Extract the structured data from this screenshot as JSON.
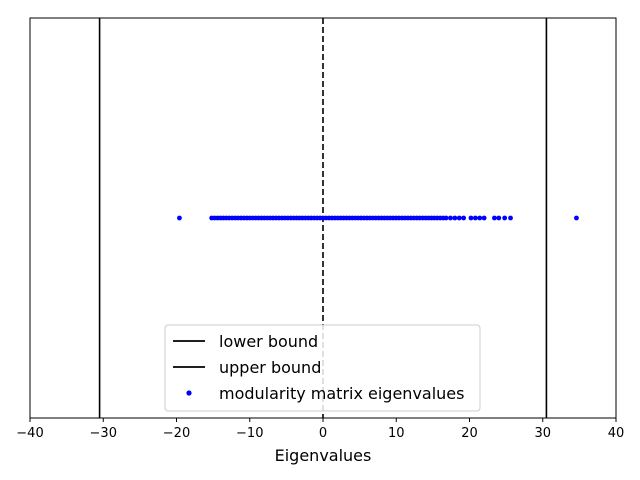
{
  "chart_data": {
    "type": "scatter",
    "title": "",
    "xlabel": "Eigenvalues",
    "ylabel": "",
    "xlim": [
      -40,
      40
    ],
    "ylim": [
      -1,
      1
    ],
    "xticks": [
      -40,
      -30,
      -20,
      -10,
      0,
      10,
      20,
      30,
      40
    ],
    "xtick_labels": [
      "−40",
      "−30",
      "−20",
      "−10",
      "0",
      "10",
      "20",
      "30",
      "40"
    ],
    "yticks_visible": false,
    "grid": false,
    "legend_position": "lower-center",
    "vertical_lines": [
      {
        "x": -30.5,
        "style": "solid",
        "color": "#000000",
        "legend": "lower bound"
      },
      {
        "x": 30.5,
        "style": "solid",
        "color": "#000000",
        "legend": "upper bound"
      },
      {
        "x": 0,
        "style": "dashed",
        "color": "#000000",
        "legend": ""
      }
    ],
    "series": [
      {
        "name": "modularity matrix eigenvalues",
        "color": "#0000ff",
        "marker": "circle",
        "y": 0,
        "x": [
          -19.6,
          -15.2,
          -14.8,
          -14.4,
          -14.0,
          -13.6,
          -13.2,
          -12.8,
          -12.4,
          -12.0,
          -11.6,
          -11.2,
          -10.8,
          -10.4,
          -10.0,
          -9.6,
          -9.2,
          -8.8,
          -8.4,
          -8.0,
          -7.6,
          -7.2,
          -6.8,
          -6.4,
          -6.0,
          -5.6,
          -5.2,
          -4.8,
          -4.4,
          -4.0,
          -3.6,
          -3.2,
          -2.8,
          -2.4,
          -2.0,
          -1.6,
          -1.2,
          -0.8,
          -0.4,
          0.0,
          0.4,
          0.8,
          1.2,
          1.6,
          2.0,
          2.4,
          2.8,
          3.2,
          3.6,
          4.0,
          4.4,
          4.8,
          5.2,
          5.6,
          6.0,
          6.4,
          6.8,
          7.2,
          7.6,
          8.0,
          8.4,
          8.8,
          9.2,
          9.6,
          10.0,
          10.4,
          10.8,
          11.2,
          11.6,
          12.0,
          12.4,
          12.8,
          13.2,
          13.6,
          14.0,
          14.4,
          14.8,
          15.2,
          15.6,
          16.0,
          16.4,
          16.8,
          17.4,
          18.0,
          18.6,
          19.2,
          20.2,
          20.8,
          21.4,
          22.0,
          23.4,
          24.0,
          24.8,
          25.6,
          34.6
        ]
      }
    ],
    "legend": [
      {
        "label": "lower bound",
        "kind": "line",
        "color": "#000000"
      },
      {
        "label": "upper bound",
        "kind": "line",
        "color": "#000000"
      },
      {
        "label": "modularity matrix eigenvalues",
        "kind": "marker",
        "color": "#0000ff"
      }
    ]
  }
}
